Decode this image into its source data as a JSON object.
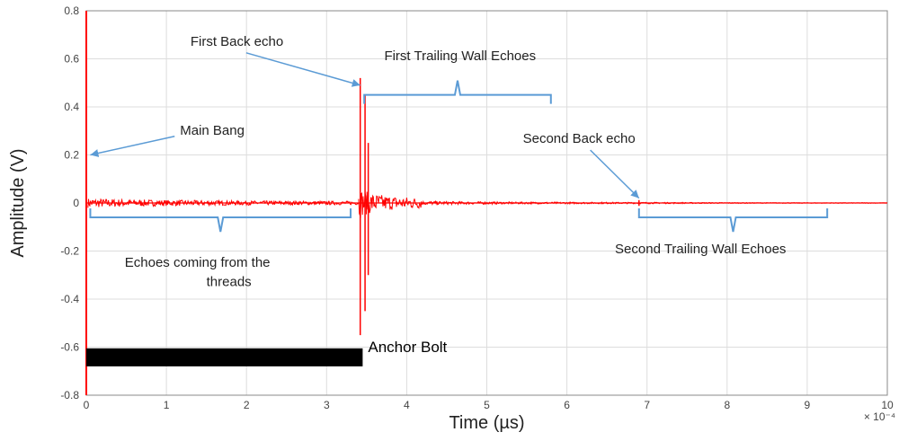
{
  "chart_data": {
    "type": "line",
    "xlabel": "Time (µs)",
    "ylabel": "Amplitude (V)",
    "xlim": [
      0,
      10
    ],
    "ylim": [
      -0.8,
      0.8
    ],
    "x_multiplier": "× 10⁻⁴",
    "x_ticks": [
      "0",
      "1",
      "2",
      "3",
      "4",
      "5",
      "6",
      "7",
      "8",
      "9",
      "10"
    ],
    "y_ticks": [
      "-0.8",
      "-0.6",
      "-0.4",
      "-0.2",
      "0",
      "0.2",
      "0.4",
      "0.6",
      "0.8"
    ],
    "grid": true,
    "series_color": "#ff0000",
    "annotation_color": "#5b9bd5",
    "spikes": [
      {
        "x": 0.0,
        "max": 0.8,
        "min": -0.8
      },
      {
        "x": 3.42,
        "max": 0.52,
        "min": -0.55
      },
      {
        "x": 3.48,
        "max": 0.45,
        "min": -0.45
      },
      {
        "x": 3.52,
        "max": 0.25,
        "min": -0.3
      },
      {
        "x": 6.9,
        "max": 0.012,
        "min": -0.012
      }
    ],
    "noise_bands": [
      {
        "from": 0.02,
        "to": 3.4,
        "amplitude": 0.02
      },
      {
        "from": 3.4,
        "to": 4.2,
        "amplitude": 0.06
      },
      {
        "from": 4.2,
        "to": 7.2,
        "amplitude": 0.008
      },
      {
        "from": 7.2,
        "to": 10,
        "amplitude": 0.003
      }
    ],
    "annotations": [
      {
        "text": "Main Bang",
        "x": 1.17,
        "y": 0.285,
        "arrow_to": [
          0.05,
          0.2
        ]
      },
      {
        "text": "First Back echo",
        "x": 1.3,
        "y": 0.655,
        "arrow_to": [
          3.42,
          0.49
        ]
      },
      {
        "text": "First Trailing Wall Echoes",
        "x": 3.72,
        "y": 0.595
      },
      {
        "text": "Second Back echo",
        "x": 5.45,
        "y": 0.25,
        "arrow_to": [
          6.9,
          0.02
        ]
      },
      {
        "text": "Echoes coming from the",
        "x": 0.48,
        "y": -0.265
      },
      {
        "text": "threads",
        "x": 1.5,
        "y": -0.345
      },
      {
        "text": "Second Trailing Wall Echoes",
        "x": 6.6,
        "y": -0.21
      }
    ],
    "braces": [
      {
        "from": 0.05,
        "to": 3.3,
        "y": -0.06,
        "direction": "down"
      },
      {
        "from": 3.47,
        "to": 5.8,
        "y": 0.45,
        "direction": "up"
      },
      {
        "from": 6.9,
        "to": 9.25,
        "y": -0.06,
        "direction": "down"
      }
    ],
    "bolt": {
      "label": "Anchor Bolt",
      "from": 0.0,
      "to": 3.45,
      "y_top": -0.605,
      "y_bottom": -0.68
    }
  }
}
